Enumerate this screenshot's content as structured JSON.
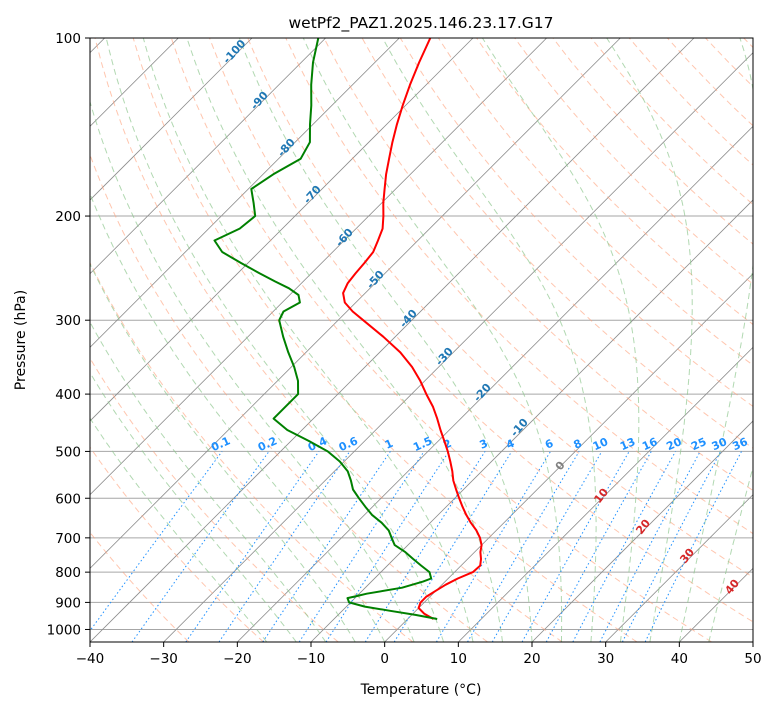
{
  "chart_data": {
    "type": "skew-t log-p",
    "title": "wetPf2_PAZ1.2025.146.23.17.G17",
    "xlabel": "Temperature (°C)",
    "ylabel": "Pressure (hPa)",
    "xlim": [
      -40,
      50
    ],
    "ylim": [
      1050,
      100
    ],
    "y_scale": "log",
    "grid": true,
    "x_ticks": [
      -40,
      -30,
      -20,
      -10,
      0,
      10,
      20,
      30,
      40,
      50
    ],
    "y_ticks": [
      100,
      200,
      300,
      400,
      500,
      600,
      700,
      800,
      900,
      1000
    ],
    "series": [
      {
        "name": "",
        "role": "temperature",
        "color": "#ff0000",
        "p": [
          960,
          940,
          920,
          900,
          880,
          860,
          840,
          820,
          800,
          780,
          760,
          740,
          720,
          700,
          680,
          660,
          640,
          620,
          600,
          580,
          560,
          540,
          520,
          500,
          480,
          460,
          440,
          420,
          400,
          380,
          360,
          340,
          320,
          300,
          290,
          280,
          270,
          260,
          250,
          240,
          230,
          220,
          210,
          200,
          190,
          180,
          170,
          160,
          150,
          140,
          130,
          120,
          110,
          100
        ],
        "t": [
          3.5,
          1.5,
          0,
          -0.5,
          -0.5,
          0,
          0.5,
          1.3,
          2.5,
          2.6,
          1.8,
          0.8,
          0,
          -1.2,
          -2.7,
          -4.5,
          -6.2,
          -7.8,
          -9.4,
          -11,
          -12.6,
          -14,
          -15.6,
          -17.3,
          -19.2,
          -21.2,
          -23.2,
          -25.4,
          -28,
          -30.6,
          -33.6,
          -37.2,
          -41.6,
          -46.6,
          -49.2,
          -51.5,
          -53,
          -53.7,
          -54,
          -54.2,
          -54.5,
          -55.4,
          -56.4,
          -58,
          -59.8,
          -61.5,
          -63.3,
          -65,
          -66.8,
          -68.6,
          -70.4,
          -72.2,
          -74,
          -75.8
        ]
      },
      {
        "name": "",
        "role": "dewpoint",
        "color": "#008000",
        "p": [
          960,
          945,
          930,
          915,
          900,
          885,
          878,
          870,
          850,
          830,
          820,
          800,
          780,
          760,
          740,
          720,
          700,
          680,
          660,
          640,
          620,
          600,
          580,
          560,
          540,
          520,
          500,
          480,
          460,
          440,
          420,
          400,
          380,
          360,
          340,
          320,
          300,
          290,
          280,
          272,
          265,
          258,
          250,
          240,
          230,
          220,
          210,
          200,
          190,
          180,
          170,
          160,
          150,
          140,
          130,
          120,
          110,
          100
        ],
        "t": [
          4,
          0.5,
          -3.5,
          -7.5,
          -10.2,
          -11,
          -10,
          -9,
          -5,
          -3,
          -2.3,
          -3.4,
          -5.4,
          -7.4,
          -9.4,
          -11.8,
          -13.2,
          -14.6,
          -16.6,
          -19,
          -21,
          -23,
          -25,
          -26.5,
          -28.2,
          -30.6,
          -33.6,
          -37.6,
          -42,
          -45.4,
          -45.4,
          -45.4,
          -47.2,
          -49.6,
          -52.4,
          -55.2,
          -58,
          -58.6,
          -57.6,
          -58.8,
          -61,
          -63.8,
          -67,
          -71,
          -75,
          -77.6,
          -75.8,
          -75.4,
          -77.4,
          -79.6,
          -78.6,
          -77,
          -78,
          -80.4,
          -82.8,
          -85.6,
          -88.4,
          -91
        ]
      }
    ],
    "mixing_ratio_labels": [
      "0.1",
      "0.2",
      "0.4",
      "0.6",
      "1",
      "1.5",
      "2",
      "3",
      "4",
      "6",
      "8",
      "10",
      "13",
      "16",
      "20",
      "25",
      "30",
      "36"
    ],
    "dry_adiabat_labels": [
      "-100",
      "-90",
      "-80",
      "-70",
      "-60",
      "-50",
      "-40",
      "-30",
      "-20",
      "-10"
    ],
    "moist_adiabat_labels": [
      "10",
      "20",
      "30",
      "40"
    ],
    "zero_label": "0"
  },
  "colors": {
    "temperature": "#ff0000",
    "dewpoint": "#008000",
    "dry_adiabat": "#ffa07a",
    "moist_adiabat": "#90c890",
    "mixing_ratio": "#1e90ff",
    "isotherm": "#8c8c8c",
    "isobar": "#a6a6a6",
    "moist_label": "#d62728",
    "dry_label": "#1f77b4"
  }
}
